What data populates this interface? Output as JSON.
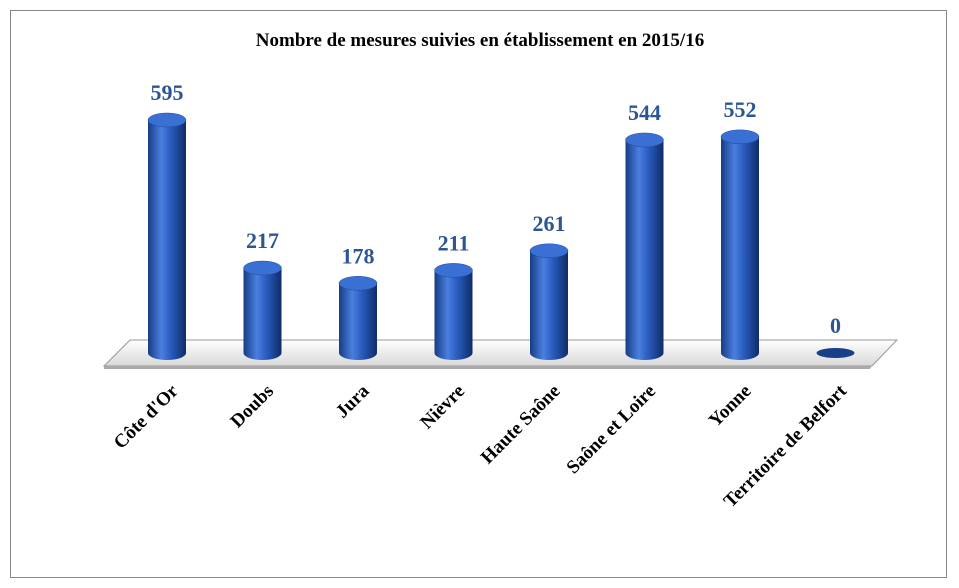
{
  "chart_data": {
    "type": "bar3d",
    "title": "Nombre de mesures suivies en établissement en 2015/16",
    "categories": [
      "Côte d'Or",
      "Doubs",
      "Jura",
      "Nièvre",
      "Haute Saône",
      "Saône et Loire",
      "Yonne",
      "Territoire de Belfort"
    ],
    "values": [
      595,
      217,
      178,
      211,
      261,
      544,
      552,
      0
    ],
    "color": "#2f62c0"
  }
}
